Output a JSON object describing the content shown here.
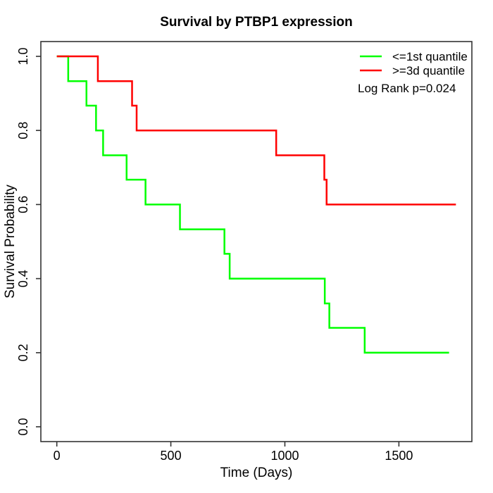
{
  "figure": {
    "title": "Survival by PTBP1 expression",
    "xlabel": "Time (Days)",
    "ylabel": "Survival Probability",
    "annotation": "Log Rank p=0.024"
  },
  "legend": {
    "position": "top-right",
    "items": [
      {
        "label": "<=1st quantile",
        "color": "#00ff00"
      },
      {
        "label": ">=3d quantile",
        "color": "#ff0000"
      }
    ]
  },
  "chart_data": {
    "type": "line",
    "subtype": "kaplan-meier-step",
    "title": "Survival by PTBP1 expression",
    "xlabel": "Time (Days)",
    "ylabel": "Survival Probability",
    "xlim": [
      0,
      1750
    ],
    "ylim": [
      0,
      1
    ],
    "x_ticks": [
      0,
      500,
      1000,
      1500
    ],
    "x_tick_labels": [
      "0",
      "500",
      "1000",
      "1500"
    ],
    "y_ticks": [
      0.0,
      0.2,
      0.4,
      0.6,
      0.8,
      1.0
    ],
    "y_tick_labels": [
      "0.0",
      "0.2",
      "0.4",
      "0.6",
      "0.8",
      "1.0"
    ],
    "grid": false,
    "legend_position": "top-right",
    "annotation": "Log Rank p=0.024",
    "series": [
      {
        "name": "<=1st quantile",
        "color": "#00ff00",
        "points": [
          [
            0,
            1.0
          ],
          [
            50,
            0.933
          ],
          [
            130,
            0.867
          ],
          [
            172,
            0.8
          ],
          [
            203,
            0.733
          ],
          [
            306,
            0.667
          ],
          [
            389,
            0.6
          ],
          [
            540,
            0.533
          ],
          [
            735,
            0.467
          ],
          [
            758,
            0.4
          ],
          [
            1175,
            0.333
          ],
          [
            1195,
            0.267
          ],
          [
            1350,
            0.2
          ],
          [
            1720,
            0.2
          ]
        ]
      },
      {
        "name": ">=3d quantile",
        "color": "#ff0000",
        "points": [
          [
            0,
            1.0
          ],
          [
            180,
            0.933
          ],
          [
            330,
            0.867
          ],
          [
            350,
            0.8
          ],
          [
            962,
            0.733
          ],
          [
            1173,
            0.667
          ],
          [
            1183,
            0.6
          ],
          [
            1750,
            0.6
          ]
        ]
      }
    ]
  },
  "axis": {
    "color": "#333333"
  }
}
